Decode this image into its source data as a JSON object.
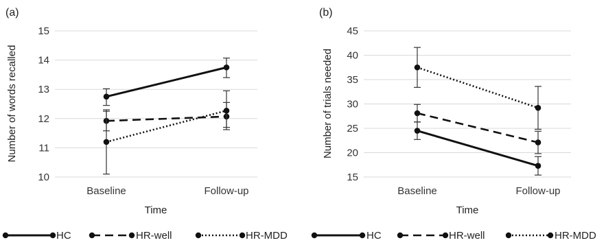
{
  "chart_data": [
    {
      "type": "line",
      "panel_label": "(a)",
      "title": "",
      "xlabel": "Time",
      "ylabel": "Number of words recalled",
      "categories": [
        "Baseline",
        "Follow-up"
      ],
      "ylim": [
        10,
        15
      ],
      "yticks": [
        "10",
        "11",
        "12",
        "13",
        "14",
        "15"
      ],
      "grid": true,
      "series": [
        {
          "name": "HC",
          "values": [
            12.75,
            13.75
          ],
          "error_low": [
            12.45,
            13.4
          ],
          "error_high": [
            13.02,
            14.07
          ],
          "style": "solid"
        },
        {
          "name": "HR-well",
          "values": [
            11.92,
            12.07
          ],
          "error_low": [
            11.58,
            11.62
          ],
          "error_high": [
            12.25,
            12.55
          ],
          "style": "dashed"
        },
        {
          "name": "HR-MDD",
          "values": [
            11.2,
            12.27
          ],
          "error_low": [
            10.1,
            11.7
          ],
          "error_high": [
            12.3,
            12.95
          ],
          "style": "dotted"
        }
      ]
    },
    {
      "type": "line",
      "panel_label": "(b)",
      "title": "",
      "xlabel": "Time",
      "ylabel": "Number of trials needed",
      "categories": [
        "Baseline",
        "Follow-up"
      ],
      "ylim": [
        15,
        45
      ],
      "yticks": [
        "15",
        "20",
        "25",
        "30",
        "35",
        "40",
        "45"
      ],
      "grid": true,
      "series": [
        {
          "name": "HC",
          "values": [
            24.5,
            17.3
          ],
          "error_low": [
            22.7,
            15.4
          ],
          "error_high": [
            26.3,
            19.2
          ],
          "style": "solid"
        },
        {
          "name": "HR-well",
          "values": [
            28.1,
            22.1
          ],
          "error_low": [
            26.3,
            19.8
          ],
          "error_high": [
            29.9,
            24.4
          ],
          "style": "dashed"
        },
        {
          "name": "HR-MDD",
          "values": [
            37.5,
            29.2
          ],
          "error_low": [
            33.4,
            24.8
          ],
          "error_high": [
            41.6,
            33.6
          ],
          "style": "dotted"
        }
      ]
    }
  ],
  "colors": {
    "line": "#111111",
    "grid": "#d9d9d9",
    "text": "#222222"
  }
}
